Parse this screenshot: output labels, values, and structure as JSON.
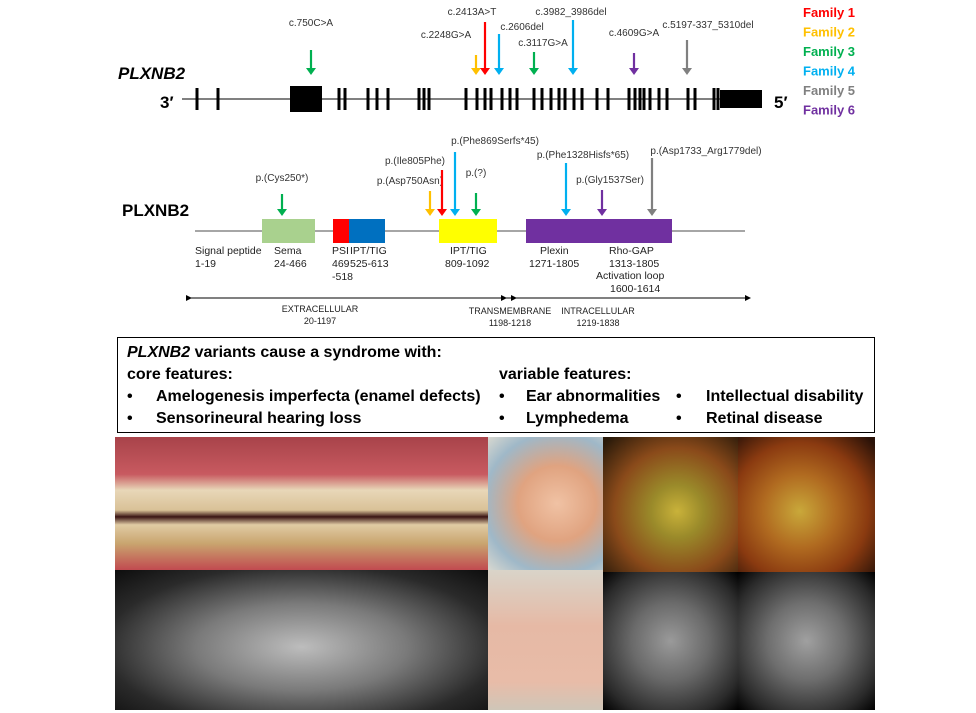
{
  "gene": {
    "label": "PLXNB2",
    "left_end": "3′",
    "right_end": "5′",
    "variants": [
      {
        "label": "c.750C>A",
        "family": 3
      },
      {
        "label": "c.2248G>A",
        "family": 2
      },
      {
        "label": "c.2413A>T",
        "family": 1
      },
      {
        "label": "c.2606del",
        "family": 4
      },
      {
        "label": "c.3117G>A",
        "family": 3
      },
      {
        "label": "c.3982_3986del",
        "family": 4
      },
      {
        "label": "c.4609G>A",
        "family": 6
      },
      {
        "label": "c.5197-337_5310del",
        "family": 5
      }
    ]
  },
  "legend": [
    {
      "label": "Family 1",
      "color": "#ff0000"
    },
    {
      "label": "Family 2",
      "color": "#ffc000"
    },
    {
      "label": "Family 3",
      "color": "#00b050"
    },
    {
      "label": "Family 4",
      "color": "#00b0f0"
    },
    {
      "label": "Family 5",
      "color": "#808080"
    },
    {
      "label": "Family 6",
      "color": "#7030a0"
    }
  ],
  "protein": {
    "label": "PLXNB2",
    "variants": [
      {
        "label": "p.(Cys250*)",
        "family": 3
      },
      {
        "label": "p.(Asp750Asn)",
        "family": 2
      },
      {
        "label": "p.(Ile805Phe)",
        "family": 1
      },
      {
        "label": "p.(Phe869Serfs*45)",
        "family": 4
      },
      {
        "label": "p.(?)",
        "family": 3
      },
      {
        "label": "p.(Phe1328Hisfs*65)",
        "family": 4
      },
      {
        "label": "p.(Gly1537Ser)",
        "family": 6
      },
      {
        "label": "p.(Asp1733_Arg1779del)",
        "family": 5
      }
    ],
    "domains": {
      "signal": [
        "Signal peptide",
        "1-19"
      ],
      "sema": [
        "Sema",
        "24-466"
      ],
      "psi": [
        "PSI",
        "469",
        "-518"
      ],
      "ipt1": [
        "IPT/TIG",
        "525-613"
      ],
      "ipt2": [
        "IPT/TIG",
        "809-1092"
      ],
      "plexin": [
        "Plexin",
        "1271-1805"
      ],
      "rhogap": [
        "Rho-GAP",
        "1313-1805",
        "Activation loop",
        "1600-1614"
      ]
    },
    "regions": {
      "extracellular": [
        "EXTRACELLULAR",
        "20-1197"
      ],
      "transmembrane": [
        "TRANSMEMBRANE",
        "1198-1218"
      ],
      "intracellular": [
        "INTRACELLULAR",
        "1219-1838"
      ]
    }
  },
  "summary": {
    "title_gene": "PLXNB2",
    "title_rest": " variants cause a syndrome with:",
    "core_heading": "core features:",
    "core": [
      "Amelogenesis imperfecta (enamel defects)",
      "Sensorineural hearing loss"
    ],
    "variable_heading": "variable features:",
    "variable": [
      "Ear abnormalities",
      "Lymphedema",
      "Intellectual disability",
      "Retinal disease"
    ],
    "bullet": "•"
  }
}
